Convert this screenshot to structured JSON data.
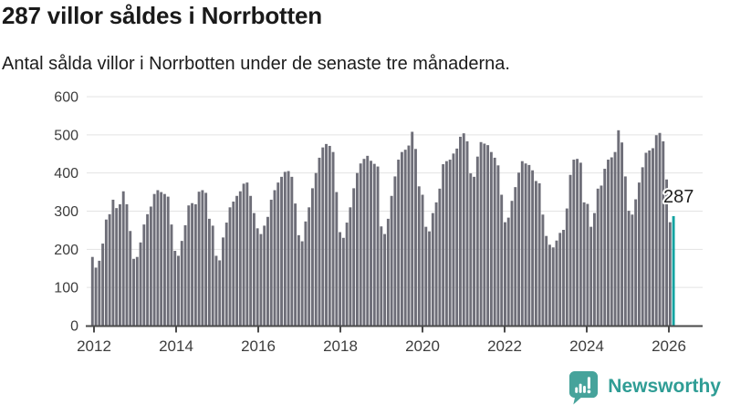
{
  "header": {
    "title": "287 villor såldes i Norrbotten",
    "subtitle": "Antal sålda villor i Norrbotten under de senaste tre månaderna."
  },
  "chart_data": {
    "type": "bar",
    "title": "287 villor såldes i Norrbotten",
    "frequency": "monthly",
    "start": "2012-01",
    "end": "2026-02",
    "values": [
      180,
      152,
      170,
      215,
      278,
      292,
      330,
      308,
      318,
      352,
      318,
      248,
      175,
      180,
      218,
      265,
      292,
      312,
      345,
      355,
      350,
      345,
      338,
      265,
      196,
      183,
      222,
      263,
      315,
      321,
      318,
      351,
      355,
      348,
      280,
      262,
      183,
      171,
      231,
      270,
      310,
      325,
      340,
      352,
      372,
      375,
      340,
      295,
      255,
      240,
      262,
      285,
      330,
      355,
      375,
      390,
      403,
      405,
      390,
      320,
      237,
      221,
      273,
      310,
      360,
      400,
      440,
      467,
      476,
      471,
      455,
      350,
      245,
      230,
      270,
      310,
      360,
      400,
      425,
      437,
      445,
      432,
      424,
      417,
      260,
      240,
      280,
      340,
      391,
      435,
      455,
      461,
      472,
      508,
      463,
      365,
      343,
      259,
      247,
      295,
      323,
      359,
      423,
      431,
      435,
      451,
      464,
      495,
      504,
      483,
      399,
      390,
      443,
      481,
      477,
      473,
      455,
      440,
      420,
      343,
      271,
      283,
      327,
      363,
      401,
      431,
      425,
      421,
      407,
      379,
      373,
      291,
      235,
      212,
      205,
      223,
      243,
      251,
      307,
      395,
      435,
      437,
      427,
      323,
      319,
      259,
      295,
      359,
      367,
      411,
      435,
      441,
      455,
      512,
      480,
      391,
      301,
      291,
      331,
      375,
      415,
      453,
      459,
      465,
      499,
      505,
      483,
      383,
      271,
      287
    ],
    "highlight_last_value": 287,
    "annotation_label": "287",
    "bar_color": "#6e6e78",
    "highlight_color": "#14a3a1",
    "grid": true,
    "legend": "none",
    "ylim": [
      0,
      600
    ],
    "yticks": [
      0,
      100,
      200,
      300,
      400,
      500,
      600
    ],
    "xticks": [
      "2012",
      "2014",
      "2016",
      "2018",
      "2020",
      "2022",
      "2024",
      "2026"
    ],
    "axis_color": "#4a4a4a",
    "grid_color": "#e3e3e3",
    "tick_label_color": "#3d3d3d"
  },
  "branding": {
    "name": "Newsworthy",
    "color": "#2f9d95",
    "icon": "speech-bubble-bar-chart-icon",
    "icon_color": "#46a39b"
  }
}
